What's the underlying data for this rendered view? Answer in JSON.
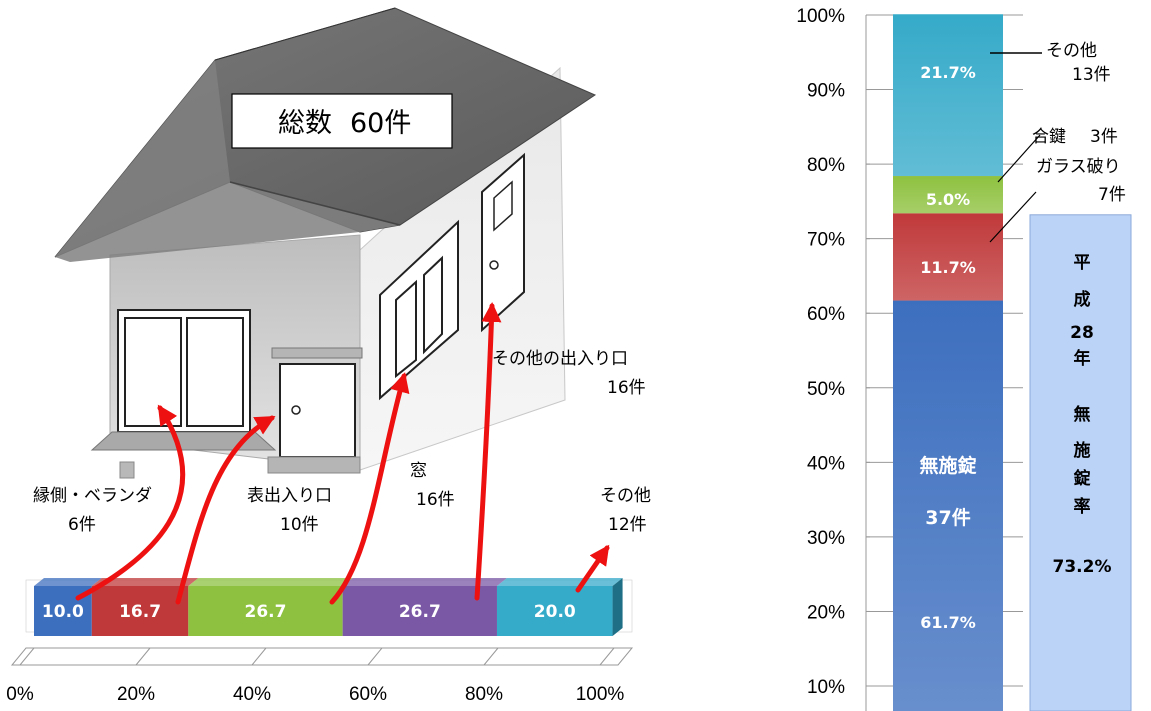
{
  "total": {
    "label": "総数",
    "value": "60件"
  },
  "colors": {
    "blue": "#3d6fbf",
    "red": "#c0393a",
    "green": "#8ec13f",
    "purple": "#7b58a6",
    "cyan": "#35aac9",
    "arrow": "#ee1111",
    "side_bar": "#bcd3f8",
    "roof": "#6b6b6b",
    "wall": "#cfcfcf"
  },
  "house_labels": [
    {
      "name": "縁側・ベランダ",
      "count": "6件"
    },
    {
      "name": "表出入り口",
      "count": "10件"
    },
    {
      "name": "窓",
      "count": "16件"
    },
    {
      "name": "その他の出入り口",
      "count": "16件"
    },
    {
      "name": "その他",
      "count": "12件"
    }
  ],
  "chart_data": [
    {
      "type": "bar",
      "orientation": "horizontal-stacked",
      "categories": [
        "縁側・ベランダ",
        "表出入り口",
        "窓",
        "その他の出入り口",
        "その他"
      ],
      "values": [
        10.0,
        16.7,
        26.7,
        26.7,
        20.0
      ],
      "value_labels": [
        "10.0",
        "16.7",
        "26.7",
        "26.7",
        "20.0"
      ],
      "colors": [
        "#3d6fbf",
        "#c0393a",
        "#8ec13f",
        "#7b58a6",
        "#35aac9"
      ],
      "xlim": [
        0,
        100
      ],
      "xticks": [
        "0%",
        "20%",
        "40%",
        "60%",
        "80%",
        "100%"
      ]
    },
    {
      "type": "bar",
      "orientation": "vertical-stacked",
      "categories": [
        "無施錠",
        "ガラス破り",
        "合鍵",
        "その他"
      ],
      "values": [
        61.7,
        11.7,
        5.0,
        21.7
      ],
      "value_labels": [
        "61.7%",
        "11.7%",
        "5.0%",
        "21.7%"
      ],
      "counts": [
        "37件",
        "7件",
        "3件",
        "13件"
      ],
      "colors": [
        "#3d6fbf",
        "#c0393a",
        "#8ec13f",
        "#35aac9"
      ],
      "main_label": "無施錠",
      "main_count": "37件",
      "ylim": [
        0,
        100
      ],
      "yticks": [
        "10%",
        "20%",
        "30%",
        "40%",
        "50%",
        "60%",
        "70%",
        "80%",
        "90%",
        "100%"
      ],
      "annotations": {
        "other": {
          "name": "その他",
          "count": "13件"
        },
        "spare_key": {
          "name": "合鍵",
          "count": "3件"
        },
        "glass": {
          "name": "ガラス破り",
          "count": "7件"
        }
      },
      "side_bar": {
        "value": 73.2,
        "lines": [
          "平",
          "成",
          "28",
          "年",
          "無",
          "施",
          "錠",
          "率"
        ],
        "value_label": "73.2%"
      }
    }
  ]
}
